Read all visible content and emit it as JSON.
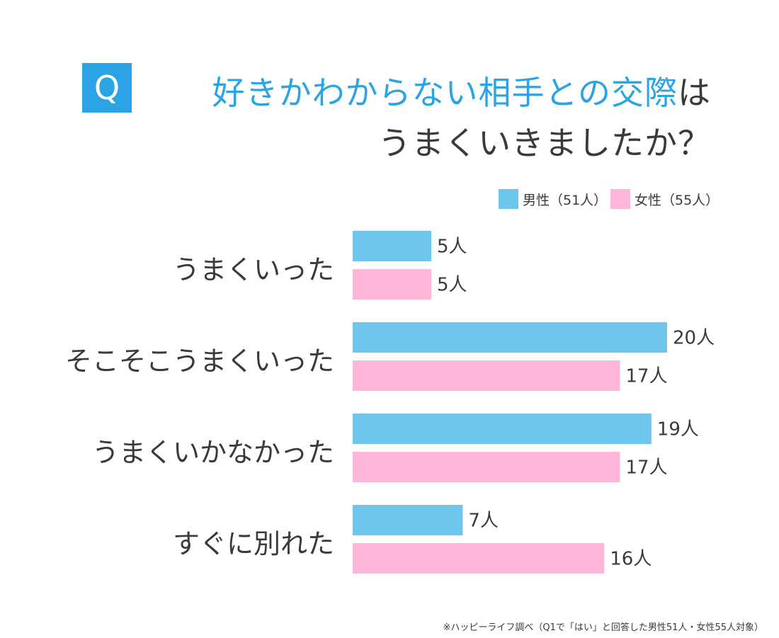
{
  "q_badge": "Q",
  "title": {
    "line1_accent": "好きかわからない相手との交際",
    "line1_rest": "は",
    "line2": "うまくいきましたか？"
  },
  "legend": {
    "male": "男性（51人）",
    "female": "女性（55人）"
  },
  "colors": {
    "male": "#6ec6ec",
    "female": "#fdb5d9",
    "accent": "#2aa4e4"
  },
  "footnote": "※ハッピーライフ調べ（Q1で「はい」と回答した男性51人・女性55人対象）",
  "chart_data": {
    "type": "bar",
    "orientation": "horizontal",
    "categories": [
      "うまくいった",
      "そこそこうまくいった",
      "うまくいかなかった",
      "すぐに別れた"
    ],
    "series": [
      {
        "name": "男性（51人）",
        "values": [
          5,
          20,
          19,
          7
        ],
        "labels": [
          "5人",
          "20人",
          "19人",
          "7人"
        ]
      },
      {
        "name": "女性（55人）",
        "values": [
          5,
          17,
          17,
          16
        ],
        "labels": [
          "5人",
          "17人",
          "17人",
          "16人"
        ]
      }
    ],
    "unit": "人",
    "title": "好きかわからない相手との交際はうまくいきましたか？",
    "xlabel": "",
    "ylabel": "",
    "grid": false,
    "legend_position": "top-right"
  }
}
